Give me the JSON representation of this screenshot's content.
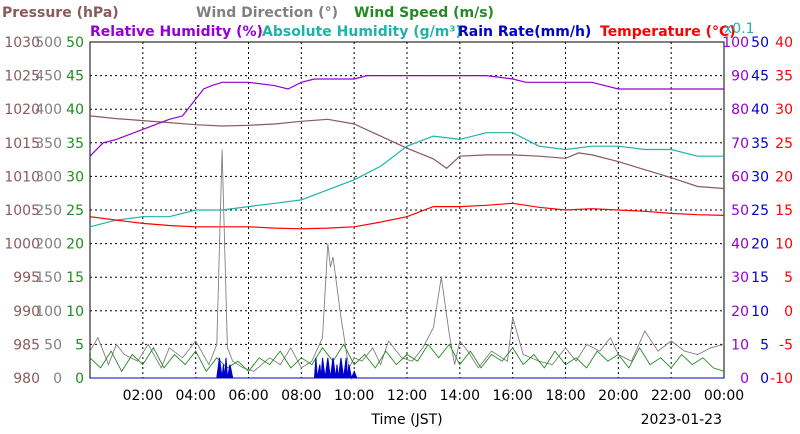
{
  "chart_data": {
    "type": "line",
    "date": "2023-01-23",
    "xlabel": "Time (JST)",
    "x_ticks": [
      "02:00",
      "04:00",
      "06:00",
      "08:00",
      "10:00",
      "12:00",
      "14:00",
      "16:00",
      "18:00",
      "20:00",
      "22:00",
      "00:00"
    ],
    "grid": true,
    "header_row1": [
      {
        "text": "Pressure (hPa)",
        "color": "#8b5a5a"
      },
      {
        "text": "Wind Direction (°)",
        "color": "#808080"
      },
      {
        "text": "Wind Speed (m/s)",
        "color": "#228b22"
      }
    ],
    "header_row2": [
      {
        "text": "Relative Humidity (%)",
        "color": "#9400d3"
      },
      {
        "text": "Absolute Humidity (g/m³)",
        "color": "#20b2aa"
      },
      {
        "text": "Rain Rate(mm/h)",
        "color": "#0000cd"
      },
      {
        "text": "Temperature (°C)",
        "color": "#ff0000"
      }
    ],
    "scale_note": {
      "text": "x0.1",
      "color": "#20b2aa"
    },
    "axes": {
      "pressure": {
        "color": "#8b5a5a",
        "labels": [
          "1030",
          "1025",
          "1020",
          "1015",
          "1010",
          "1005",
          "1000",
          "995",
          "990",
          "985",
          "980"
        ],
        "range": [
          980,
          1030
        ]
      },
      "wind_direction": {
        "color": "#808080",
        "labels": [
          "500",
          "450",
          "400",
          "350",
          "300",
          "250",
          "200",
          "150",
          "100",
          "50",
          "0"
        ],
        "range": [
          0,
          500
        ]
      },
      "wind_speed": {
        "color": "#228b22",
        "labels": [
          "50",
          "45",
          "40",
          "35",
          "30",
          "25",
          "20",
          "15",
          "10",
          "5",
          "0"
        ],
        "range": [
          0,
          50
        ]
      },
      "humidity": {
        "color": "#9400d3",
        "labels": [
          "100",
          "90",
          "80",
          "70",
          "60",
          "50",
          "40",
          "30",
          "20",
          "10",
          "0"
        ],
        "range": [
          0,
          100
        ]
      },
      "rain_rate": {
        "color": "#0000cd",
        "labels": [
          "50",
          "45",
          "40",
          "35",
          "30",
          "25",
          "20",
          "15",
          "10",
          "5",
          "0"
        ],
        "range": [
          0,
          50
        ]
      },
      "temperature": {
        "color": "#ff0000",
        "labels": [
          "40",
          "35",
          "30",
          "25",
          "20",
          "15",
          "10",
          "5",
          "0",
          "-5",
          "-10"
        ],
        "range": [
          -10,
          40
        ]
      }
    },
    "series": [
      {
        "name": "Pressure (hPa)",
        "color": "#8b5a5a",
        "x": [
          0,
          1,
          2,
          3,
          4,
          5,
          6,
          7,
          8,
          9,
          10,
          11,
          12,
          13,
          13.5,
          14,
          15,
          16,
          17,
          18,
          18.5,
          19,
          20,
          21,
          22,
          23,
          24
        ],
        "values": [
          1019,
          1018.6,
          1018.3,
          1018,
          1017.7,
          1017.5,
          1017.6,
          1017.8,
          1018.2,
          1018.5,
          1017.8,
          1016,
          1014.2,
          1012.6,
          1011.2,
          1013,
          1013.2,
          1013.2,
          1013,
          1012.7,
          1013.5,
          1013.2,
          1012.2,
          1011,
          1009.8,
          1008.5,
          1008.2
        ]
      },
      {
        "name": "Relative Humidity (%)",
        "color": "#9400d3",
        "x": [
          0,
          0.5,
          1,
          2,
          3,
          3.5,
          4,
          4.3,
          4.6,
          5,
          6,
          7,
          7.5,
          8,
          8.5,
          9,
          10,
          10.5,
          11,
          12,
          13,
          14,
          15,
          16,
          16.5,
          17,
          18,
          19,
          20,
          21,
          22,
          23,
          24
        ],
        "values": [
          66,
          70,
          71,
          74,
          77,
          78,
          83,
          86,
          87,
          88,
          88,
          87,
          86,
          88,
          89,
          89,
          89,
          90,
          90,
          90,
          90,
          90,
          90,
          89,
          88,
          88,
          88,
          88,
          86,
          86,
          86,
          86,
          86
        ]
      },
      {
        "name": "Absolute Humidity (g/m³)",
        "color": "#20b2aa",
        "x": [
          0,
          1,
          2,
          3,
          4,
          5,
          6,
          7,
          8,
          9,
          10,
          11,
          12,
          13,
          14,
          15,
          16,
          17,
          18,
          19,
          20,
          21,
          22,
          23,
          24
        ],
        "values": [
          4.5,
          4.7,
          4.8,
          4.8,
          5,
          5,
          5.1,
          5.2,
          5.3,
          5.6,
          5.9,
          6.3,
          6.9,
          7.2,
          7.1,
          7.3,
          7.3,
          6.9,
          6.8,
          6.9,
          6.9,
          6.8,
          6.8,
          6.6,
          6.6
        ]
      },
      {
        "name": "Temperature (°C)",
        "color": "#ff0000",
        "x": [
          0,
          1,
          2,
          3,
          4,
          5,
          6,
          7,
          8,
          9,
          10,
          11,
          12,
          13,
          14,
          15,
          16,
          17,
          18,
          19,
          20,
          21,
          22,
          23,
          24
        ],
        "values": [
          14,
          13.5,
          13,
          12.7,
          12.5,
          12.5,
          12.5,
          12.3,
          12.2,
          12.3,
          12.5,
          13.2,
          14,
          15.5,
          15.5,
          15.7,
          16,
          15.4,
          15,
          15.2,
          15,
          14.8,
          14.5,
          14.3,
          14.2
        ]
      },
      {
        "name": "Wind Direction (°)",
        "color": "#808080",
        "x": [
          0,
          0.3,
          0.7,
          1,
          1.3,
          1.8,
          2.2,
          2.7,
          3,
          3.5,
          4,
          4.5,
          4.8,
          5,
          5.2,
          5.4,
          5.8,
          6.2,
          6.8,
          7.2,
          7.6,
          8,
          8.4,
          8.8,
          9,
          9.1,
          9.2,
          9.5,
          9.8,
          10,
          10.3,
          10.7,
          11,
          11.3,
          11.8,
          12.2,
          12.6,
          13,
          13.3,
          13.6,
          13.8,
          14,
          14.3,
          14.7,
          15.2,
          15.8,
          16,
          16.4,
          17,
          17.5,
          18,
          18.4,
          18.8,
          19.3,
          19.7,
          20,
          20.5,
          21,
          21.5,
          22,
          22.5,
          23,
          23.5,
          24
        ],
        "values": [
          40,
          60,
          20,
          50,
          35,
          25,
          50,
          15,
          45,
          30,
          55,
          20,
          50,
          340,
          45,
          25,
          15,
          10,
          30,
          20,
          45,
          15,
          25,
          60,
          200,
          165,
          180,
          90,
          15,
          30,
          25,
          45,
          20,
          55,
          30,
          25,
          45,
          75,
          150,
          65,
          20,
          55,
          40,
          15,
          40,
          25,
          90,
          35,
          25,
          20,
          45,
          25,
          50,
          40,
          60,
          35,
          25,
          70,
          40,
          55,
          40,
          35,
          45,
          50
        ]
      },
      {
        "name": "Wind Speed (m/s)",
        "color": "#228b22",
        "x": [
          0,
          0.4,
          0.8,
          1.2,
          1.6,
          2,
          2.4,
          2.8,
          3.2,
          3.6,
          4,
          4.4,
          4.8,
          5.2,
          5.6,
          6,
          6.4,
          6.8,
          7.2,
          7.6,
          8,
          8.4,
          8.8,
          9.2,
          9.6,
          10,
          10.4,
          10.8,
          11.2,
          11.6,
          12,
          12.4,
          12.8,
          13.2,
          13.6,
          14,
          14.4,
          14.8,
          15.2,
          15.6,
          16,
          16.4,
          16.8,
          17.2,
          17.6,
          18,
          18.4,
          18.8,
          19.2,
          19.6,
          20,
          20.4,
          20.8,
          21.2,
          21.6,
          22,
          22.4,
          22.8,
          23.2,
          23.6,
          24
        ],
        "values": [
          3,
          1.5,
          4,
          1,
          3.5,
          2,
          4.5,
          1.5,
          3.5,
          2,
          4,
          1,
          3,
          1.5,
          2.5,
          1,
          3,
          2,
          4,
          1.5,
          3,
          2,
          4.5,
          2.5,
          5,
          2,
          3.5,
          1.5,
          4,
          2,
          3.5,
          2.5,
          5,
          3,
          5,
          2,
          4,
          1.5,
          3.5,
          2.5,
          4.5,
          2,
          3.5,
          1.5,
          4,
          2,
          3,
          1.5,
          4,
          2.5,
          3.5,
          1.5,
          4.5,
          2,
          3,
          1.5,
          3.5,
          2,
          3,
          1.5,
          1
        ]
      },
      {
        "name": "Rain Rate(mm/h)",
        "color": "#0000cd",
        "x": [
          0,
          4.8,
          4.9,
          5,
          5.05,
          5.1,
          5.15,
          5.2,
          5.3,
          5.4,
          8.5,
          8.55,
          8.6,
          8.7,
          8.75,
          8.8,
          8.9,
          9,
          9.1,
          9.2,
          9.3,
          9.35,
          9.4,
          9.5,
          9.6,
          9.7,
          9.75,
          9.8,
          9.9,
          10,
          10.1,
          24
        ],
        "values": [
          0,
          0,
          3,
          0,
          2,
          0,
          3,
          0,
          2,
          0,
          0,
          3,
          0,
          2,
          0,
          3,
          0,
          3,
          0,
          3,
          0,
          2,
          0,
          3,
          0,
          3,
          0,
          2,
          0,
          1,
          0,
          0
        ]
      }
    ]
  }
}
